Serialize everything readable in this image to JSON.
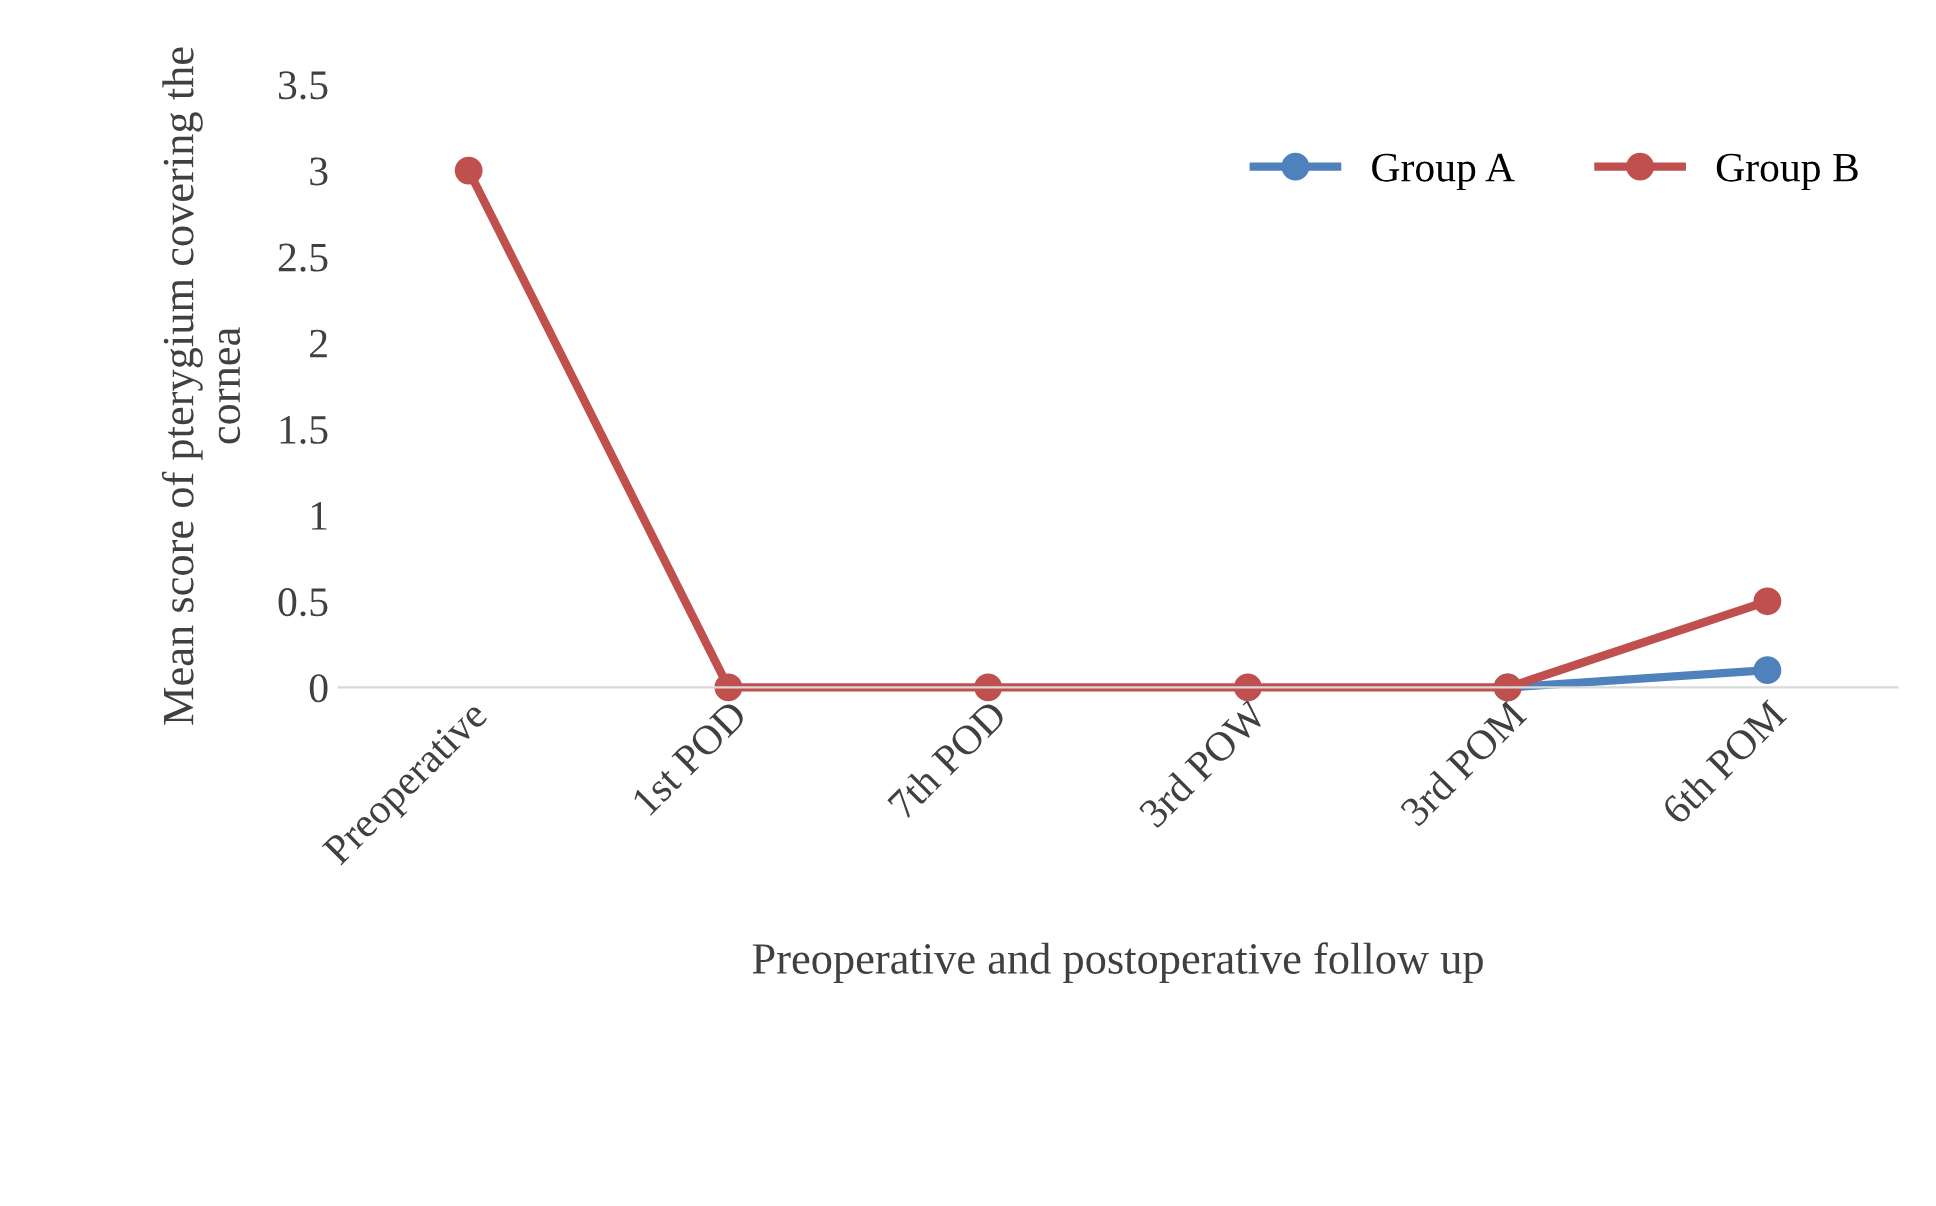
{
  "chart_data": {
    "type": "line",
    "xlabel": "Preoperative and postoperative follow up",
    "ylabel": "Mean score of pterygium covering the\ncornea",
    "categories": [
      "Preoperative",
      "1st POD",
      "7th POD",
      "3rd POW",
      "3rd POM",
      "6th POM"
    ],
    "series": [
      {
        "name": "Group A",
        "color": "#4f81bd",
        "values": [
          null,
          null,
          null,
          null,
          0,
          0.1
        ]
      },
      {
        "name": "Group B",
        "color": "#c0504d",
        "values": [
          3,
          0,
          0,
          0,
          0,
          0.5
        ]
      }
    ],
    "ylim": [
      0,
      3.5
    ],
    "yticks": [
      0,
      0.5,
      1,
      1.5,
      2,
      2.5,
      3,
      3.5
    ],
    "marker": "circle",
    "line_style": "solid",
    "legend": "top right",
    "grid": false
  }
}
